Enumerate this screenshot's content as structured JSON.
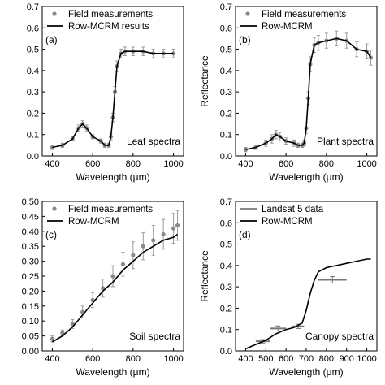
{
  "chart_data": [
    {
      "panel": "(a)",
      "type": "line",
      "annotation": "Leaf spectra",
      "xlabel": "Wavelength (μm)",
      "ylabel": "Reflectance",
      "xlim": [
        350,
        1050
      ],
      "ylim": [
        0,
        0.7
      ],
      "xticks": [
        400,
        600,
        800,
        1000
      ],
      "yticks": [
        0.0,
        0.1,
        0.2,
        0.3,
        0.4,
        0.5,
        0.6,
        0.7
      ],
      "xtick_labels": [
        "400",
        "600",
        "800",
        "1000"
      ],
      "ytick_labels": [
        "0.0",
        "0.1",
        "0.2",
        "0.3",
        "0.4",
        "0.5",
        "0.6",
        "0.7"
      ],
      "show_ylabel": false,
      "legend": {
        "placement": "top-left",
        "entries": [
          {
            "label": "Field measurements",
            "kind": "marker"
          },
          {
            "label": "Row-MCRM results",
            "kind": "line"
          }
        ]
      },
      "series": [
        {
          "name": "Field measurements",
          "kind": "points",
          "x": [
            400,
            450,
            500,
            530,
            550,
            570,
            600,
            640,
            660,
            680,
            690,
            700,
            710,
            720,
            740,
            760,
            800,
            850,
            900,
            950,
            1000
          ],
          "y": [
            0.04,
            0.05,
            0.08,
            0.13,
            0.15,
            0.13,
            0.09,
            0.07,
            0.05,
            0.05,
            0.09,
            0.18,
            0.3,
            0.42,
            0.48,
            0.49,
            0.49,
            0.49,
            0.48,
            0.48,
            0.48
          ],
          "err": [
            0.01,
            0.01,
            0.01,
            0.015,
            0.015,
            0.015,
            0.01,
            0.01,
            0.01,
            0.01,
            0.015,
            0.02,
            0.025,
            0.025,
            0.02,
            0.02,
            0.02,
            0.02,
            0.02,
            0.02,
            0.02
          ]
        },
        {
          "name": "Row-MCRM results",
          "kind": "line",
          "x": [
            400,
            450,
            500,
            530,
            550,
            570,
            600,
            640,
            660,
            680,
            690,
            700,
            710,
            720,
            740,
            760,
            800,
            850,
            900,
            950,
            1000
          ],
          "y": [
            0.04,
            0.05,
            0.08,
            0.13,
            0.15,
            0.13,
            0.09,
            0.07,
            0.05,
            0.05,
            0.09,
            0.18,
            0.3,
            0.42,
            0.48,
            0.49,
            0.49,
            0.49,
            0.48,
            0.48,
            0.48
          ]
        }
      ]
    },
    {
      "panel": "(b)",
      "type": "line",
      "annotation": "Plant spectra",
      "xlabel": "Wavelength (μm)",
      "ylabel": "Reflectance",
      "xlim": [
        350,
        1050
      ],
      "ylim": [
        0,
        0.7
      ],
      "xticks": [
        400,
        600,
        800,
        1000
      ],
      "yticks": [
        0.0,
        0.1,
        0.2,
        0.3,
        0.4,
        0.5,
        0.6,
        0.7
      ],
      "xtick_labels": [
        "400",
        "600",
        "800",
        "1000"
      ],
      "ytick_labels": [
        "0.0",
        "0.1",
        "0.2",
        "0.3",
        "0.4",
        "0.5",
        "0.6",
        "0.7"
      ],
      "show_ylabel": true,
      "legend": {
        "placement": "top-left",
        "entries": [
          {
            "label": "Field measurements",
            "kind": "marker"
          },
          {
            "label": "Row-MCRM",
            "kind": "line"
          }
        ]
      },
      "series": [
        {
          "name": "Field measurements",
          "kind": "points",
          "x": [
            400,
            450,
            500,
            530,
            550,
            570,
            600,
            640,
            660,
            680,
            690,
            700,
            710,
            720,
            740,
            760,
            800,
            850,
            900,
            950,
            1000,
            1020
          ],
          "y": [
            0.03,
            0.04,
            0.06,
            0.08,
            0.1,
            0.09,
            0.07,
            0.06,
            0.05,
            0.05,
            0.06,
            0.13,
            0.27,
            0.43,
            0.52,
            0.53,
            0.54,
            0.55,
            0.54,
            0.5,
            0.49,
            0.46
          ],
          "err": [
            0.01,
            0.01,
            0.015,
            0.02,
            0.02,
            0.02,
            0.015,
            0.015,
            0.01,
            0.01,
            0.015,
            0.025,
            0.03,
            0.035,
            0.035,
            0.035,
            0.035,
            0.035,
            0.035,
            0.035,
            0.035,
            0.035
          ]
        },
        {
          "name": "Row-MCRM",
          "kind": "line",
          "x": [
            400,
            450,
            500,
            530,
            550,
            570,
            600,
            640,
            660,
            680,
            690,
            700,
            710,
            720,
            740,
            760,
            800,
            850,
            900,
            950,
            1000,
            1020
          ],
          "y": [
            0.03,
            0.04,
            0.06,
            0.08,
            0.1,
            0.09,
            0.07,
            0.06,
            0.05,
            0.05,
            0.06,
            0.13,
            0.27,
            0.43,
            0.52,
            0.53,
            0.54,
            0.55,
            0.54,
            0.5,
            0.49,
            0.46
          ]
        }
      ]
    },
    {
      "panel": "(c)",
      "type": "line",
      "annotation": "Soil spectra",
      "xlabel": "Wavelength (μm)",
      "ylabel": "Reflectance",
      "xlim": [
        350,
        1050
      ],
      "ylim": [
        0,
        0.5
      ],
      "xticks": [
        400,
        600,
        800,
        1000
      ],
      "yticks": [
        0.0,
        0.05,
        0.1,
        0.15,
        0.2,
        0.25,
        0.3,
        0.35,
        0.4,
        0.45,
        0.5
      ],
      "xtick_labels": [
        "400",
        "600",
        "800",
        "1000"
      ],
      "ytick_labels": [
        "0.00",
        "0.05",
        "0.10",
        "0.15",
        "0.20",
        "0.25",
        "0.30",
        "0.35",
        "0.40",
        "0.45",
        "0.50"
      ],
      "show_ylabel": false,
      "legend": {
        "placement": "top-left",
        "entries": [
          {
            "label": "Field measurements",
            "kind": "marker"
          },
          {
            "label": "Row-MCRM",
            "kind": "line"
          }
        ]
      },
      "series": [
        {
          "name": "Field measurements",
          "kind": "points",
          "x": [
            400,
            450,
            500,
            550,
            600,
            650,
            700,
            750,
            800,
            850,
            900,
            950,
            1000,
            1020
          ],
          "y": [
            0.04,
            0.06,
            0.09,
            0.13,
            0.17,
            0.21,
            0.25,
            0.29,
            0.32,
            0.35,
            0.37,
            0.39,
            0.41,
            0.42
          ],
          "err": [
            0.01,
            0.01,
            0.015,
            0.02,
            0.025,
            0.03,
            0.035,
            0.04,
            0.045,
            0.045,
            0.05,
            0.05,
            0.05,
            0.05
          ]
        },
        {
          "name": "Row-MCRM",
          "kind": "line",
          "x": [
            400,
            450,
            500,
            550,
            600,
            650,
            700,
            750,
            800,
            850,
            900,
            950,
            1000,
            1020
          ],
          "y": [
            0.03,
            0.05,
            0.08,
            0.12,
            0.16,
            0.2,
            0.23,
            0.27,
            0.3,
            0.33,
            0.35,
            0.37,
            0.38,
            0.39
          ]
        }
      ]
    },
    {
      "panel": "(d)",
      "type": "line",
      "annotation": "Canopy spectra",
      "xlabel": "Wavelength (μm)",
      "ylabel": "Reflectance",
      "xlim": [
        350,
        1050
      ],
      "ylim": [
        0,
        0.7
      ],
      "xticks": [
        400,
        500,
        600,
        700,
        800,
        900,
        1000
      ],
      "yticks": [
        0.0,
        0.1,
        0.2,
        0.3,
        0.4,
        0.5,
        0.6,
        0.7
      ],
      "xtick_labels": [
        "400",
        "500",
        "600",
        "700",
        "800",
        "900",
        "1000"
      ],
      "ytick_labels": [
        "0.0",
        "0.1",
        "0.2",
        "0.3",
        "0.4",
        "0.5",
        "0.6",
        "0.7"
      ],
      "show_ylabel": true,
      "legend": {
        "placement": "top-left",
        "entries": [
          {
            "label": "Landsat 5 data",
            "kind": "line-gray"
          },
          {
            "label": "Row-MCRM",
            "kind": "line"
          }
        ]
      },
      "series": [
        {
          "name": "Landsat 5 data",
          "kind": "bands",
          "bands": [
            {
              "x0": 450,
              "x1": 520,
              "y": 0.045,
              "err": 0.008
            },
            {
              "x0": 520,
              "x1": 600,
              "y": 0.105,
              "err": 0.012
            },
            {
              "x0": 630,
              "x1": 690,
              "y": 0.115,
              "err": 0.01
            },
            {
              "x0": 760,
              "x1": 900,
              "y": 0.333,
              "err": 0.015
            }
          ]
        },
        {
          "name": "Row-MCRM",
          "kind": "line",
          "x": [
            400,
            450,
            500,
            550,
            600,
            640,
            680,
            700,
            720,
            740,
            760,
            800,
            850,
            900,
            950,
            1000,
            1020
          ],
          "y": [
            0.01,
            0.03,
            0.05,
            0.08,
            0.1,
            0.11,
            0.13,
            0.19,
            0.27,
            0.33,
            0.37,
            0.39,
            0.4,
            0.41,
            0.42,
            0.43,
            0.43
          ]
        }
      ]
    }
  ]
}
